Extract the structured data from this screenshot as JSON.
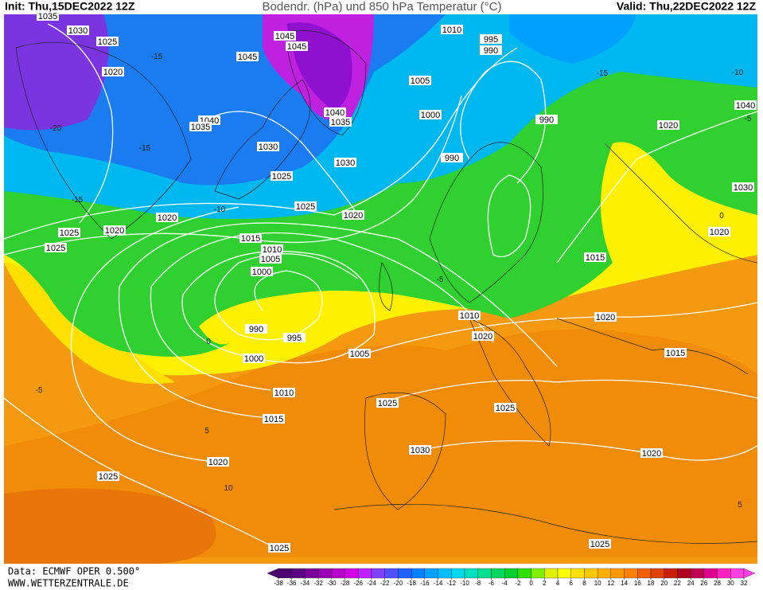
{
  "header": {
    "init": "Init: Thu,15DEC2022 12Z",
    "title": "Bodendr. (hPa) und 850 hPa Temperatur (°C)",
    "valid": "Valid: Thu,22DEC2022 12Z"
  },
  "footer": {
    "data": "Data: ECMWF OPER 0.500°",
    "site": "WWW.WETTERZENTRALE.DE"
  },
  "colorbar": {
    "ticks": [
      -38,
      -36,
      -34,
      -32,
      -30,
      -28,
      -26,
      -24,
      -22,
      -20,
      -18,
      -16,
      -14,
      -12,
      -10,
      -8,
      -6,
      -4,
      -2,
      0,
      2,
      4,
      6,
      8,
      10,
      12,
      14,
      16,
      18,
      20,
      22,
      24,
      26,
      28,
      30,
      32
    ],
    "colors": [
      "#4b0070",
      "#5c0084",
      "#7a0099",
      "#9900b3",
      "#b800cc",
      "#d400e6",
      "#c020ff",
      "#8040ff",
      "#5050ff",
      "#2060ff",
      "#0080ff",
      "#00a0ff",
      "#00c0ff",
      "#00d8f0",
      "#00e0c0",
      "#00e090",
      "#00d860",
      "#00d030",
      "#30e000",
      "#80f000",
      "#e0f000",
      "#ffff00",
      "#ffe000",
      "#ffc800",
      "#ffb000",
      "#ff9800",
      "#ff8000",
      "#f06000",
      "#e04000",
      "#c82000",
      "#b00020",
      "#c00050",
      "#e00090",
      "#ff20c0",
      "#ff40e0"
    ]
  },
  "isobar_labels": [
    "1035",
    "1030",
    "1025",
    "1020",
    "1045",
    "1045",
    "1045",
    "1010",
    "995",
    "990",
    "1005",
    "1040",
    "1035",
    "1000",
    "990",
    "1040",
    "1035",
    "1030",
    "1025",
    "1030",
    "990",
    "1025",
    "1020",
    "1020",
    "1025",
    "1020",
    "1025",
    "1015",
    "1010",
    "1005",
    "1000",
    "990",
    "995",
    "1000",
    "1005",
    "1010",
    "1015",
    "1020",
    "1025",
    "1025",
    "1025",
    "1030",
    "1010",
    "1020",
    "1020",
    "1015",
    "1015",
    "1020",
    "1025",
    "1025",
    "1040",
    "1020",
    "1030",
    "1020"
  ],
  "isotherm_labels": [
    "-15",
    "-20",
    "-15",
    "-15",
    "-10",
    "-15",
    "-10",
    "-5",
    "-5",
    "0",
    "-5",
    "5",
    "10",
    "5",
    "0"
  ]
}
